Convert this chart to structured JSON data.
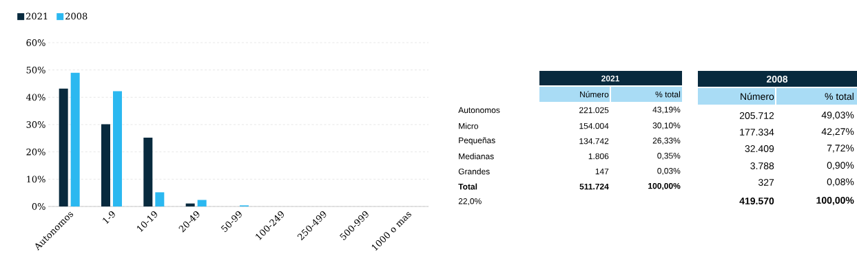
{
  "chart_data": [
    {
      "type": "bar",
      "categories": [
        "Autonomos",
        "1-9",
        "10-19",
        "20-49",
        "50-99",
        "100-249",
        "250-499",
        "500-999",
        "1000 o mas"
      ],
      "series": [
        {
          "name": "2021",
          "color": "#082a3e",
          "values": [
            43.2,
            30.1,
            25.2,
            1.1,
            0,
            0,
            0,
            0,
            0
          ]
        },
        {
          "name": "2008",
          "color": "#2bb8f0",
          "values": [
            49.0,
            42.2,
            5.2,
            2.4,
            0.4,
            0,
            0,
            0,
            0
          ]
        }
      ],
      "ylim": [
        0,
        60
      ],
      "yticks": [
        {
          "value": 0,
          "label": "0%"
        },
        {
          "value": 10,
          "label": "10%"
        },
        {
          "value": 20,
          "label": "20%"
        },
        {
          "value": 30,
          "label": "30%"
        },
        {
          "value": 40,
          "label": "40%"
        },
        {
          "value": 50,
          "label": "50%"
        },
        {
          "value": 60,
          "label": "60%"
        }
      ],
      "grid": "y",
      "legend": "top left"
    },
    {
      "type": "other",
      "title": "2021",
      "annotations": [
        "Número",
        "% total",
        "Autonomos",
        "221.025",
        "43,19%",
        "Micro",
        "154.004",
        "30,10%",
        "Pequeñas",
        "134.742",
        "26,33%",
        "Medianas",
        "1.806",
        "0,35%",
        "Grandes",
        "147",
        "0,03%",
        "Total",
        "511.724",
        "100,00%",
        "22,0%"
      ]
    },
    {
      "type": "other",
      "title": "2008",
      "annotations": [
        "Número",
        "% total",
        "205.712",
        "49,03%",
        "177.334",
        "42,27%",
        "32.409",
        "7,72%",
        "3.788",
        "0,90%",
        "327",
        "0,08%",
        "419.570",
        "100,00%"
      ]
    }
  ]
}
